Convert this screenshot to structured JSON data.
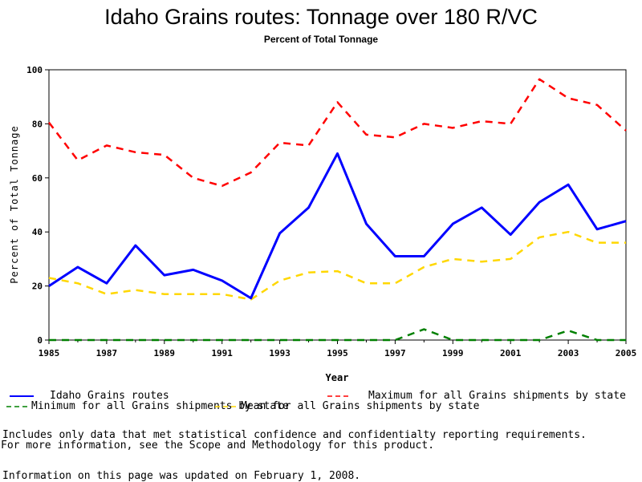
{
  "chart_data": {
    "type": "line",
    "title": "Idaho Grains routes: Tonnage over 180 R/VC",
    "subtitle": "Percent of Total Tonnage",
    "xlabel": "Year",
    "ylabel": "Percent of Total Tonnage",
    "xlim": [
      1985,
      2005
    ],
    "ylim": [
      0,
      100
    ],
    "x_ticks": [
      "1985",
      "1987",
      "1989",
      "1991",
      "1993",
      "1995",
      "1997",
      "1999",
      "2001",
      "2003",
      "2005"
    ],
    "y_ticks": [
      "0",
      "20",
      "40",
      "60",
      "80",
      "100"
    ],
    "x": [
      1985,
      1986,
      1987,
      1988,
      1989,
      1990,
      1991,
      1992,
      1993,
      1994,
      1995,
      1996,
      1997,
      1998,
      1999,
      2000,
      2001,
      2002,
      2003,
      2004,
      2005
    ],
    "series": [
      {
        "name": "Idaho Grains routes",
        "color": "#0000ff",
        "dash": "solid",
        "values": [
          20,
          27,
          21,
          35,
          24,
          26,
          22,
          15.5,
          39.5,
          49,
          69,
          43,
          31,
          31,
          43,
          49,
          39,
          51,
          57.5,
          41,
          44
        ]
      },
      {
        "name": "Maximum for all Grains shipments by state",
        "color": "#ff0000",
        "dash": "dashed",
        "values": [
          80.5,
          66.5,
          72,
          69.5,
          68.5,
          60,
          57,
          62,
          73,
          72,
          88,
          76,
          75,
          80,
          78.5,
          81,
          80,
          96.5,
          89.5,
          87,
          77.5
        ]
      },
      {
        "name": "Minimum for all Grains shipments by state",
        "color": "#008000",
        "dash": "dashed",
        "values": [
          0,
          0,
          0,
          0,
          0,
          0,
          0,
          0,
          0,
          0,
          0,
          0,
          0,
          4,
          0,
          0,
          0,
          0,
          3.5,
          0,
          0
        ]
      },
      {
        "name": "Mean for all Grains shipments by state",
        "color": "#ffd700",
        "dash": "dashed",
        "values": [
          23,
          21,
          17,
          18.5,
          17,
          17,
          17,
          15,
          22,
          25,
          25.5,
          21,
          21,
          27,
          30,
          29,
          30,
          38,
          40,
          36,
          36
        ]
      }
    ],
    "grid": false,
    "legend_placement": "bottom"
  },
  "footer": {
    "note1": "Includes only data that met statistical confidence and confidentialty reporting requirements.",
    "note2": "For more information, see the Scope and Methodology for this product.",
    "updated": "Information on this page was updated on February 1, 2008."
  }
}
